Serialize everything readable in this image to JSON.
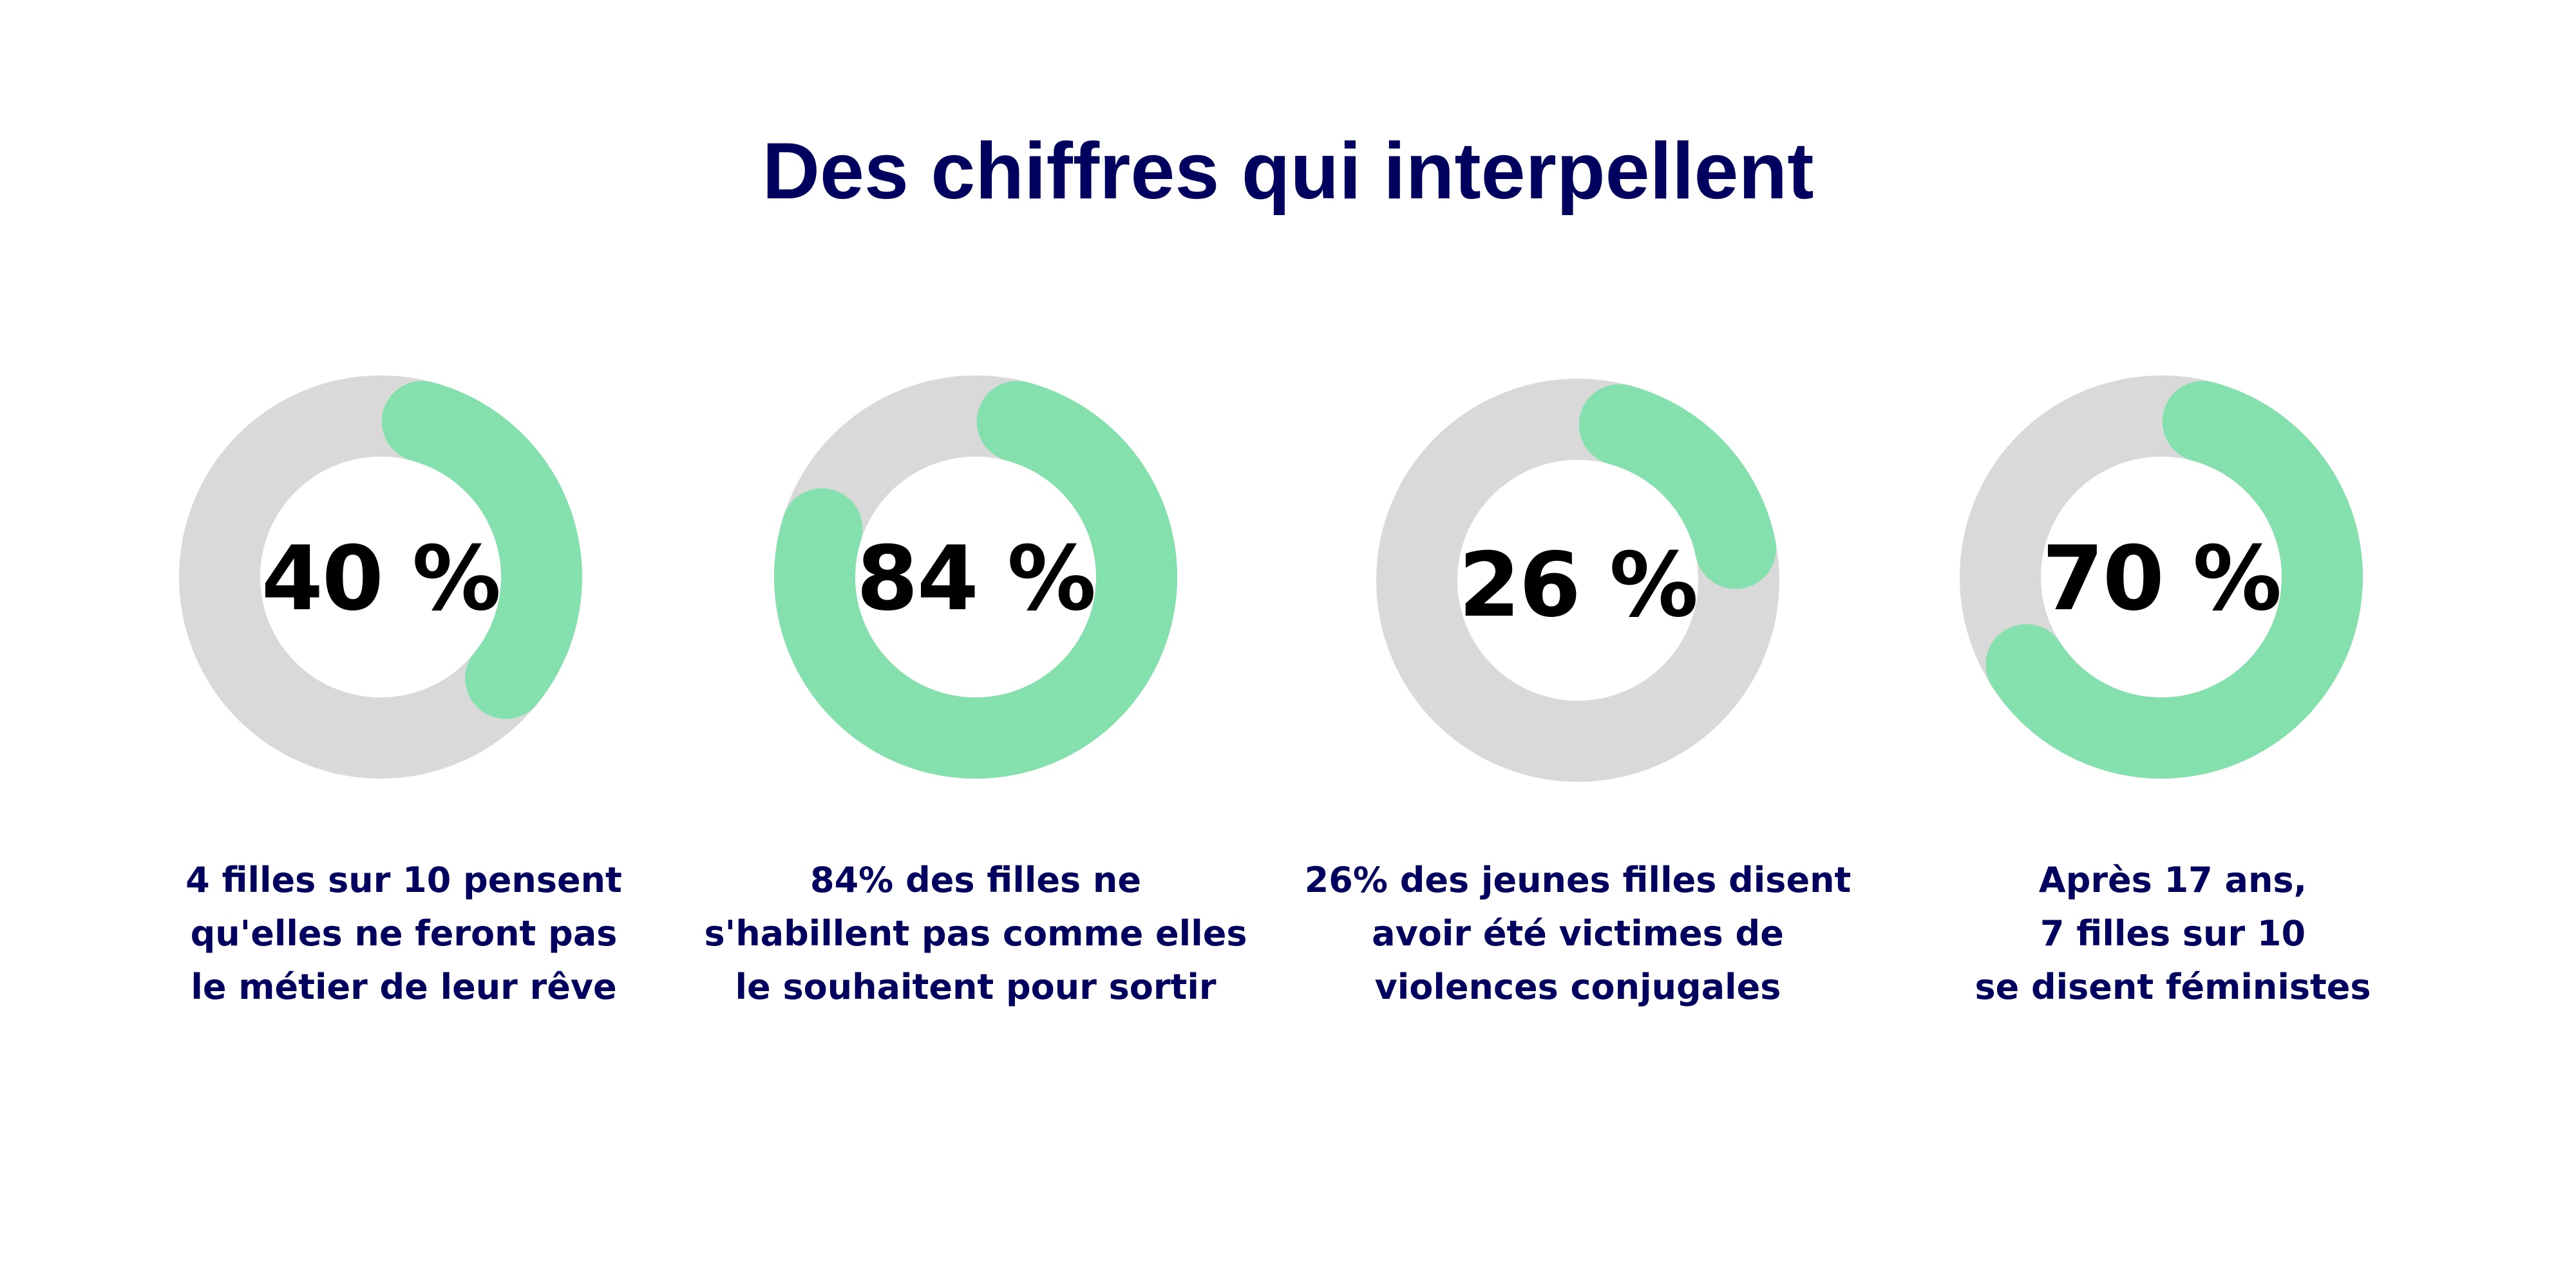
{
  "title": "Des chiffres qui interpellent",
  "colors": {
    "title": "#00005e",
    "track": "#d9d9d9",
    "fill": "#84e1ad",
    "value": "#000000",
    "caption": "#00005e"
  },
  "chart_data": {
    "type": "donut",
    "title": "Des chiffres qui interpellent",
    "items": [
      {
        "value": 40,
        "label": "40 %",
        "caption": [
          "4 filles sur 10 pensent",
          "qu'elles ne feront pas",
          "le métier de leur rêve"
        ]
      },
      {
        "value": 84,
        "label": "84 %",
        "caption": [
          "84% des filles  ne",
          "s'habillent pas comme elles",
          "le souhaitent pour sortir"
        ]
      },
      {
        "value": 26,
        "label": "26 %",
        "caption": [
          "26% des jeunes filles disent",
          "avoir été victimes de",
          "violences  conjugales"
        ]
      },
      {
        "value": 70,
        "label": "70 %",
        "caption": [
          "Après 17 ans,",
          "7 filles sur 10",
          "se disent féministes"
        ]
      }
    ]
  }
}
